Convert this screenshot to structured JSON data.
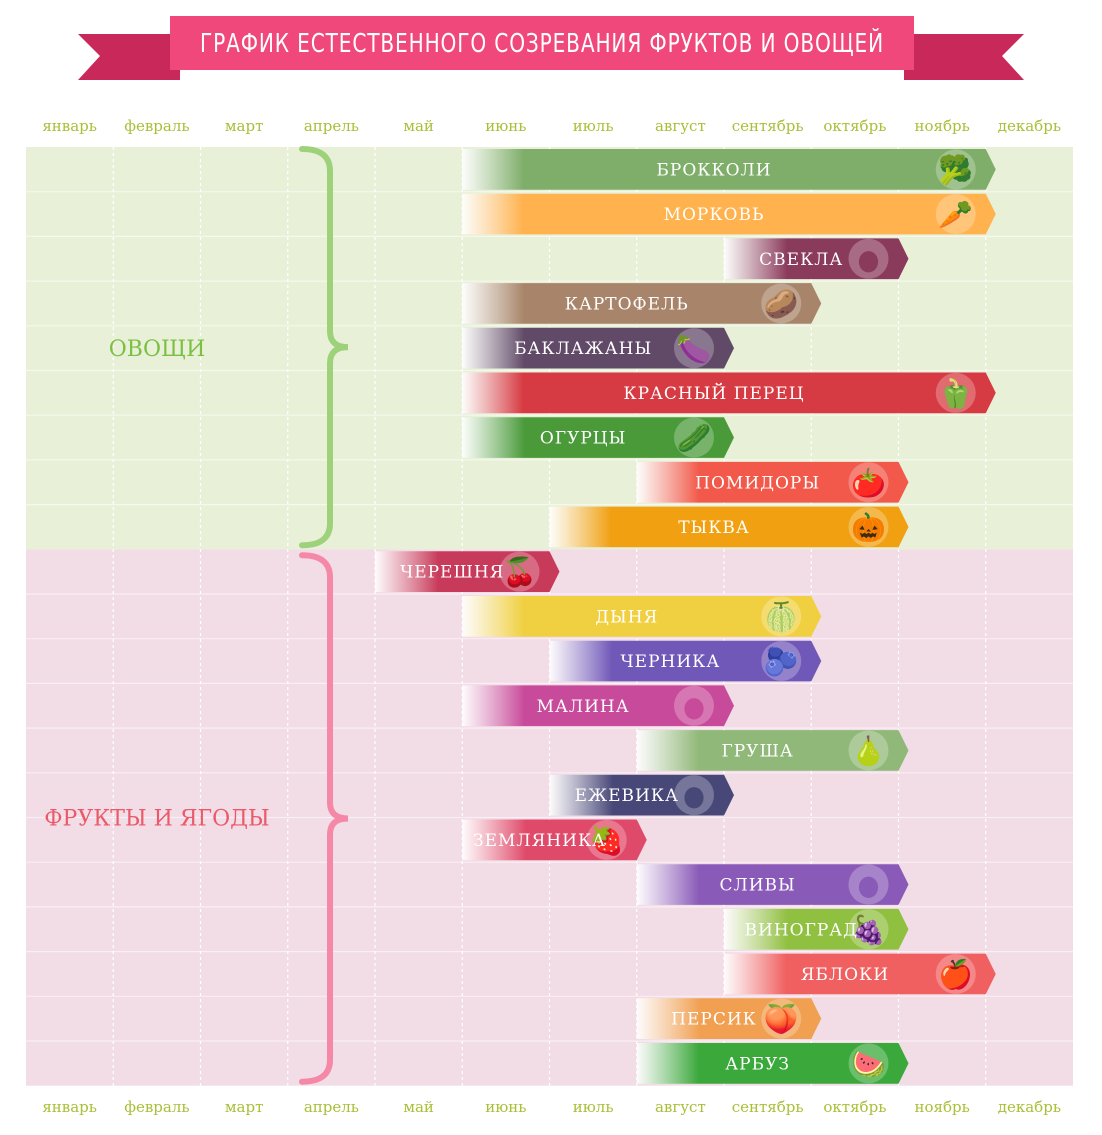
{
  "title": "ГРАФИК ЕСТЕСТВЕННОГО СОЗРЕВАНИЯ ФРУКТОВ И ОВОЩЕЙ",
  "months": [
    "январь",
    "февраль",
    "март",
    "апрель",
    "май",
    "июнь",
    "июль",
    "август",
    "сентябрь",
    "октябрь",
    "ноябрь",
    "декабрь"
  ],
  "colors": {
    "banner": "#f0487a",
    "banner_dark": "#c8285a",
    "month_label": "#a8c038",
    "veg_bg": "#e8f0d8",
    "fruit_bg": "#f2dce6",
    "veg_label": "#7cc043",
    "fruit_label": "#ea5a6a",
    "veg_brace": "#9ed27a",
    "fruit_brace": "#f587a7"
  },
  "groups": {
    "vegetables": "ОВОЩИ",
    "fruits": "ФРУКТЫ И ЯГОДЫ"
  },
  "chart_data": {
    "type": "gantt",
    "title": "ГРАФИК ЕСТЕСТВЕННОГО СОЗРЕВАНИЯ ФРУКТОВ И ОВОЩЕЙ",
    "x_categories": [
      "январь",
      "февраль",
      "март",
      "апрель",
      "май",
      "июнь",
      "июль",
      "август",
      "сентябрь",
      "октябрь",
      "ноябрь",
      "декабрь"
    ],
    "series": [
      {
        "group": "ОВОЩИ",
        "name": "БРОККОЛИ",
        "start_month": 6,
        "end_month": 11,
        "color": "#7fae6a",
        "icon": "broccoli-icon"
      },
      {
        "group": "ОВОЩИ",
        "name": "МОРКОВЬ",
        "start_month": 6,
        "end_month": 11,
        "color": "#ffb24d",
        "icon": "carrot-icon"
      },
      {
        "group": "ОВОЩИ",
        "name": "СВЕКЛА",
        "start_month": 9,
        "end_month": 10,
        "color": "#8a3a5a",
        "icon": "beet-icon"
      },
      {
        "group": "ОВОЩИ",
        "name": "КАРТОФЕЛЬ",
        "start_month": 6,
        "end_month": 9,
        "color": "#a8856a",
        "icon": "potato-icon"
      },
      {
        "group": "ОВОЩИ",
        "name": "БАКЛАЖАНЫ",
        "start_month": 6,
        "end_month": 8,
        "color": "#614a68",
        "icon": "eggplant-icon"
      },
      {
        "group": "ОВОЩИ",
        "name": "КРАСНЫЙ ПЕРЕЦ",
        "start_month": 6,
        "end_month": 11,
        "color": "#d63a42",
        "icon": "red-pepper-icon"
      },
      {
        "group": "ОВОЩИ",
        "name": "ОГУРЦЫ",
        "start_month": 6,
        "end_month": 8,
        "color": "#4a9a3a",
        "icon": "cucumber-icon"
      },
      {
        "group": "ОВОЩИ",
        "name": "ПОМИДОРЫ",
        "start_month": 8,
        "end_month": 10,
        "color": "#f2594a",
        "icon": "tomato-icon"
      },
      {
        "group": "ОВОЩИ",
        "name": "ТЫКВА",
        "start_month": 7,
        "end_month": 10,
        "color": "#f0a010",
        "icon": "pumpkin-icon"
      },
      {
        "group": "ФРУКТЫ И ЯГОДЫ",
        "name": "ЧЕРЕШНЯ",
        "start_month": 5,
        "end_month": 6,
        "color": "#c83a5a",
        "icon": "cherry-icon"
      },
      {
        "group": "ФРУКТЫ И ЯГОДЫ",
        "name": "ДЫНЯ",
        "start_month": 6,
        "end_month": 9,
        "color": "#f0d040",
        "icon": "melon-icon"
      },
      {
        "group": "ФРУКТЫ И ЯГОДЫ",
        "name": "ЧЕРНИКА",
        "start_month": 7,
        "end_month": 9,
        "color": "#7058b8",
        "icon": "blueberry-icon"
      },
      {
        "group": "ФРУКТЫ И ЯГОДЫ",
        "name": "МАЛИНА",
        "start_month": 6,
        "end_month": 8,
        "color": "#c84a9a",
        "icon": "raspberry-icon"
      },
      {
        "group": "ФРУКТЫ И ЯГОДЫ",
        "name": "ГРУША",
        "start_month": 8,
        "end_month": 10,
        "color": "#90b878",
        "icon": "pear-icon"
      },
      {
        "group": "ФРУКТЫ И ЯГОДЫ",
        "name": "ЕЖЕВИКА",
        "start_month": 7,
        "end_month": 8,
        "color": "#484878",
        "icon": "blackberry-icon"
      },
      {
        "group": "ФРУКТЫ И ЯГОДЫ",
        "name": "ЗЕМЛЯНИКА",
        "start_month": 6,
        "end_month": 7,
        "color": "#e04a6a",
        "icon": "strawberry-icon"
      },
      {
        "group": "ФРУКТЫ И ЯГОДЫ",
        "name": "СЛИВЫ",
        "start_month": 8,
        "end_month": 10,
        "color": "#8a5ab8",
        "icon": "plum-icon"
      },
      {
        "group": "ФРУКТЫ И ЯГОДЫ",
        "name": "ВИНОГРАД",
        "start_month": 9,
        "end_month": 10,
        "color": "#90c040",
        "icon": "grape-icon"
      },
      {
        "group": "ФРУКТЫ И ЯГОДЫ",
        "name": "ЯБЛОКИ",
        "start_month": 9,
        "end_month": 11,
        "color": "#f06060",
        "icon": "apple-icon"
      },
      {
        "group": "ФРУКТЫ И ЯГОДЫ",
        "name": "ПЕРСИК",
        "start_month": 8,
        "end_month": 9,
        "color": "#f0a050",
        "icon": "peach-icon"
      },
      {
        "group": "ФРУКТЫ И ЯГОДЫ",
        "name": "АРБУЗ",
        "start_month": 8,
        "end_month": 10,
        "color": "#3aa83a",
        "icon": "watermelon-icon"
      }
    ]
  }
}
